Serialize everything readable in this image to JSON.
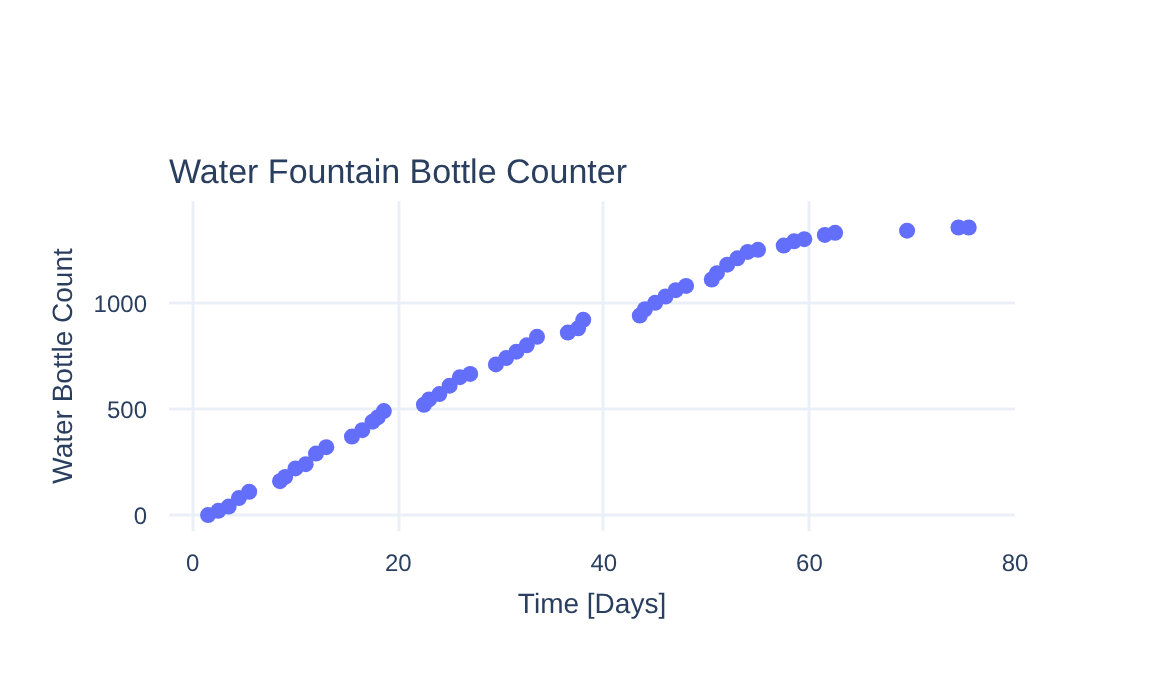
{
  "chart_data": {
    "type": "scatter",
    "title": "Water Fountain Bottle Counter",
    "xlabel": "Time [Days]",
    "ylabel": "Water Bottle Count",
    "x": [
      1.5,
      2.5,
      3.5,
      4.5,
      5.5,
      8.5,
      9,
      10,
      11,
      12,
      13,
      15.5,
      16.5,
      17.5,
      18,
      18.6,
      22.5,
      23,
      24,
      25,
      26,
      27,
      29.5,
      30.5,
      31.5,
      32.5,
      33.5,
      36.5,
      37.5,
      38,
      43.5,
      44,
      45,
      46,
      47,
      48,
      50.5,
      51,
      52,
      53,
      54,
      55,
      57.5,
      58.5,
      59.5,
      61.5,
      62.5,
      69.5,
      74.5,
      75.5
    ],
    "series": [
      {
        "color": "#636efa",
        "values": [
          0,
          20,
          40,
          80,
          110,
          160,
          180,
          220,
          240,
          290,
          320,
          370,
          400,
          440,
          460,
          490,
          520,
          545,
          570,
          610,
          650,
          665,
          710,
          740,
          770,
          800,
          840,
          860,
          880,
          920,
          940,
          970,
          1000,
          1030,
          1060,
          1080,
          1110,
          1140,
          1180,
          1210,
          1240,
          1250,
          1270,
          1290,
          1300,
          1320,
          1330,
          1340,
          1355,
          1355
        ]
      }
    ],
    "xlim": [
      -2.3,
      80
    ],
    "ylim": [
      -75,
      1480
    ],
    "xticks": [
      0,
      20,
      40,
      60,
      80
    ],
    "yticks": [
      0,
      500,
      1000
    ],
    "grid": true,
    "marker": "circle"
  }
}
